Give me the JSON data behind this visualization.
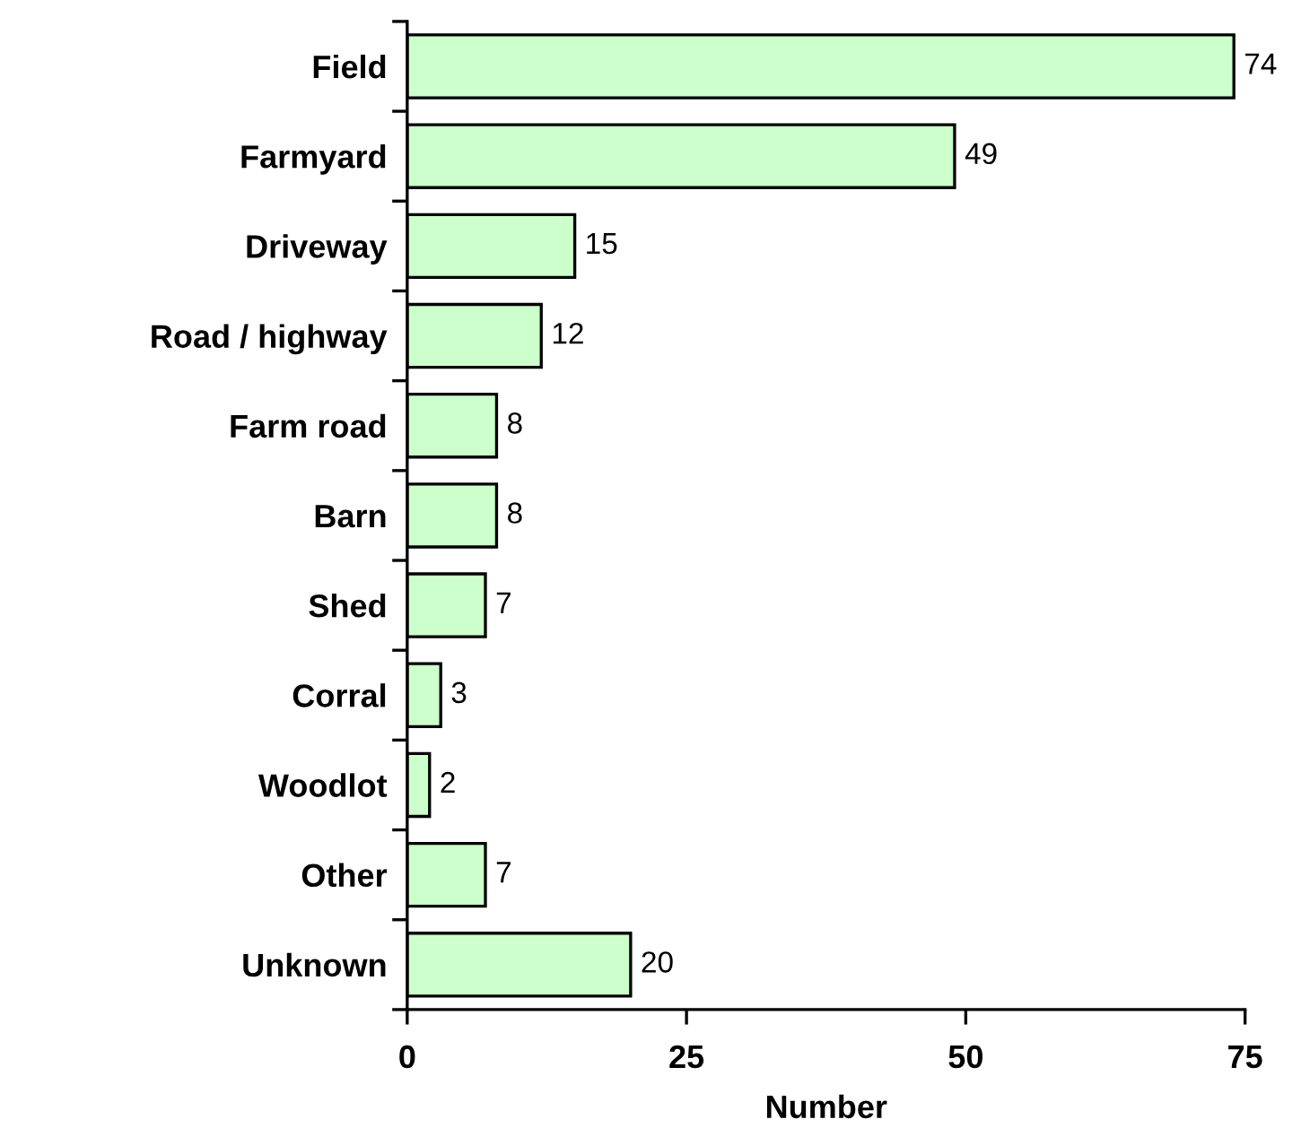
{
  "chart_data": {
    "type": "bar",
    "orientation": "horizontal",
    "xlabel": "Number",
    "categories": [
      "Field",
      "Farmyard",
      "Driveway",
      "Road / highway",
      "Farm road",
      "Barn",
      "Shed",
      "Corral",
      "Woodlot",
      "Other",
      "Unknown"
    ],
    "values": [
      74,
      49,
      15,
      12,
      8,
      8,
      7,
      3,
      2,
      7,
      20
    ],
    "color": "#ccffcc",
    "data_labels": true,
    "xlim": [
      0,
      75
    ],
    "xticks": [
      0,
      25,
      50,
      75
    ],
    "grid": false,
    "legend": false
  }
}
